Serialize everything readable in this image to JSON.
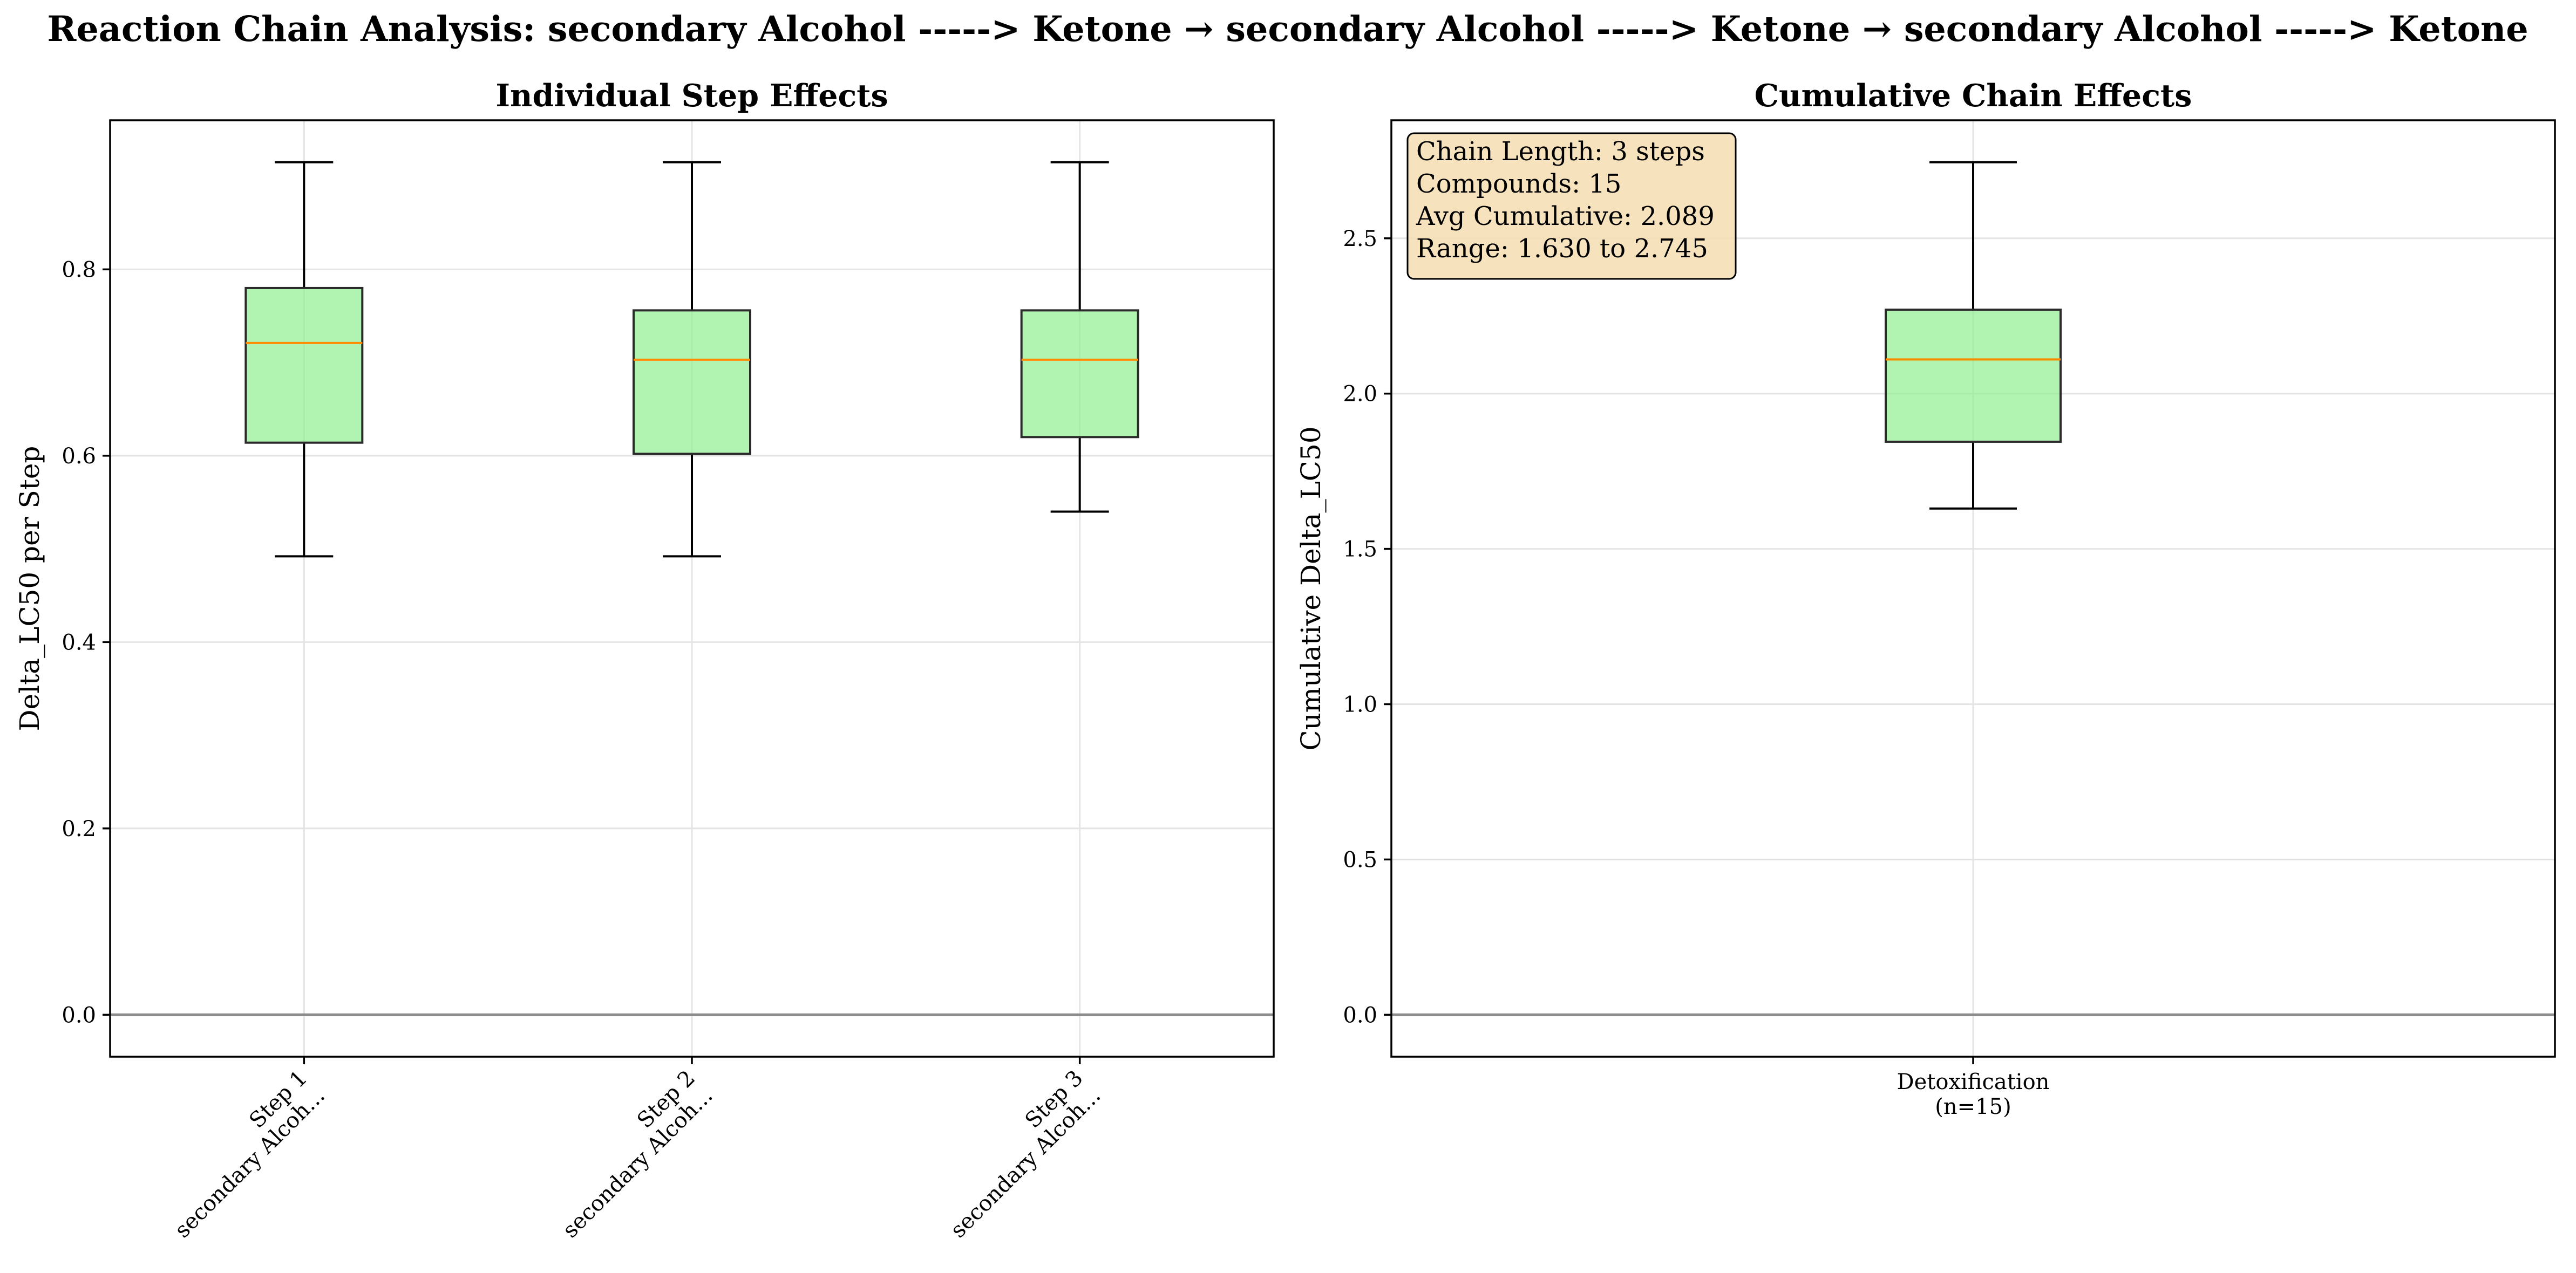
{
  "figure": {
    "title": "Reaction Chain Analysis: secondary Alcohol -----> Ketone → secondary Alcohol -----> Ketone → secondary Alcohol -----> Ketone"
  },
  "chart_data": [
    {
      "type": "box",
      "title": "Individual Step Effects",
      "xlabel": "",
      "ylabel": "Delta_LC50 per Step",
      "ylim": [
        -0.045,
        0.96
      ],
      "yticks": [
        0.0,
        0.2,
        0.4,
        0.6,
        0.8
      ],
      "ytick_labels": [
        "0.0",
        "0.2",
        "0.4",
        "0.6",
        "0.8"
      ],
      "grid": true,
      "reference_line": 0.0,
      "box_color": "#90ee90",
      "median_color": "#ff8c00",
      "categories": [
        {
          "line1": "Step 1",
          "line2": "secondary Alcoh..."
        },
        {
          "line1": "Step 2",
          "line2": "secondary Alcoh..."
        },
        {
          "line1": "Step 3",
          "line2": "secondary Alcoh..."
        }
      ],
      "boxes": [
        {
          "whisker_low": 0.492,
          "q1": 0.614,
          "median": 0.721,
          "q3": 0.78,
          "whisker_high": 0.915
        },
        {
          "whisker_low": 0.492,
          "q1": 0.602,
          "median": 0.703,
          "q3": 0.756,
          "whisker_high": 0.915
        },
        {
          "whisker_low": 0.54,
          "q1": 0.62,
          "median": 0.703,
          "q3": 0.756,
          "whisker_high": 0.915
        }
      ]
    },
    {
      "type": "box",
      "title": "Cumulative Chain Effects",
      "xlabel": "",
      "ylabel": "Cumulative Delta_LC50",
      "ylim": [
        -0.135,
        2.88
      ],
      "yticks": [
        0.0,
        0.5,
        1.0,
        1.5,
        2.0,
        2.5
      ],
      "ytick_labels": [
        "0.0",
        "0.5",
        "1.0",
        "1.5",
        "2.0",
        "2.5"
      ],
      "grid": true,
      "reference_line": 0.0,
      "box_color": "#90ee90",
      "median_color": "#ff8c00",
      "categories": [
        {
          "line1": "Detoxification",
          "line2": "(n=15)"
        }
      ],
      "boxes": [
        {
          "whisker_low": 1.63,
          "q1": 1.845,
          "median": 2.11,
          "q3": 2.27,
          "whisker_high": 2.745
        }
      ],
      "annotation": [
        "Chain Length: 3 steps",
        "Compounds: 15",
        "Avg Cumulative: 2.089",
        "Range: 1.630 to 2.745"
      ],
      "annotation_placement": "top-left"
    }
  ]
}
